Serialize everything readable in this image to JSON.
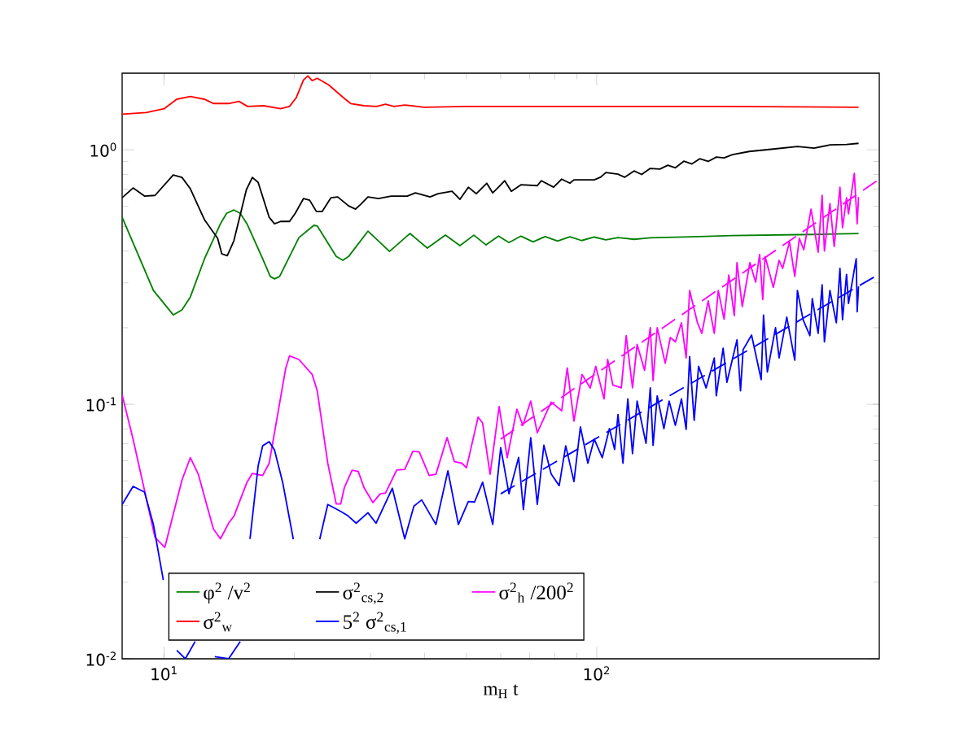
{
  "chart_data": {
    "type": "line",
    "xlabel": "m$_{H}$ t",
    "log": "xy",
    "grid": false,
    "legend": "bottom left",
    "marker": "none",
    "xlim": [
      8,
      450
    ],
    "ylim": [
      0.01,
      2
    ],
    "xticks": [
      {
        "value": 10,
        "label": "10$^{1}$"
      },
      {
        "value": 100,
        "label": "10$^{2}$"
      }
    ],
    "yticks": [
      {
        "value": 0.01,
        "label": "10$^{-2}$"
      },
      {
        "value": 0.1,
        "label": "10$^{-1}$"
      },
      {
        "value": 1,
        "label": "10$^{0}$"
      }
    ],
    "series": [
      {
        "name": "φ$^{2}$ /v$^{2}$",
        "color": "#008000",
        "line_style": "solid",
        "x": [
          8.0,
          9.45,
          10.5,
          11.0,
          11.5,
          12.4,
          13.5,
          13.95,
          14.5,
          15.0,
          15.55,
          16.9,
          17.6,
          18.0,
          18.5,
          20.5,
          22.2,
          22.6,
          25.0,
          25.9,
          26.7,
          29.6,
          33.2,
          37.0,
          40.6,
          44.7,
          48.3,
          52.0,
          55.5,
          59.3,
          62.7,
          66.8,
          71.3,
          76.0,
          81.2,
          86.7,
          92.3,
          98.7,
          105,
          112,
          122,
          133,
          166,
          206,
          318,
          403
        ],
        "values": [
          0.543,
          0.28,
          0.2245,
          0.235,
          0.264,
          0.373,
          0.512,
          0.563,
          0.58,
          0.563,
          0.512,
          0.373,
          0.318,
          0.311,
          0.318,
          0.452,
          0.505,
          0.502,
          0.381,
          0.368,
          0.381,
          0.479,
          0.399,
          0.469,
          0.411,
          0.462,
          0.42,
          0.462,
          0.423,
          0.458,
          0.432,
          0.458,
          0.435,
          0.456,
          0.438,
          0.455,
          0.44,
          0.454,
          0.443,
          0.452,
          0.445,
          0.451,
          0.455,
          0.46,
          0.465,
          0.469
        ]
      },
      {
        "name": "σ$^{2}$$_{w}$",
        "color": "#ff0000",
        "line_style": "solid",
        "x": [
          8.0,
          9.1,
          10.0,
          10.7,
          11.5,
          12.4,
          13.0,
          14.1,
          14.9,
          15.6,
          17.0,
          18.6,
          19.5,
          20.2,
          21.0,
          21.5,
          22.0,
          22.6,
          24.0,
          26.0,
          27.0,
          29.0,
          31,
          32.5,
          34,
          36,
          40,
          50,
          100,
          200,
          403
        ],
        "values": [
          1.38,
          1.4,
          1.45,
          1.58,
          1.62,
          1.58,
          1.52,
          1.52,
          1.55,
          1.48,
          1.49,
          1.45,
          1.48,
          1.6,
          1.88,
          1.95,
          1.87,
          1.91,
          1.8,
          1.6,
          1.52,
          1.49,
          1.48,
          1.51,
          1.48,
          1.5,
          1.47,
          1.48,
          1.48,
          1.48,
          1.47
        ]
      },
      {
        "name": "σ$^{2}$$_{cs,2}$",
        "color": "#000000",
        "line_style": "solid",
        "x": [
          8.0,
          8.48,
          9.01,
          9.53,
          10.5,
          11.0,
          11.5,
          12.4,
          13.3,
          13.6,
          14.0,
          14.5,
          15.5,
          16.0,
          16.5,
          17.5,
          18.0,
          18.6,
          19.5,
          20.1,
          21.0,
          21.7,
          22.5,
          23.2,
          24.3,
          25.2,
          26.7,
          27.7,
          28.5,
          29.6,
          31.3,
          33.5,
          36.5,
          38.1,
          41.2,
          43.0,
          46.3,
          48.3,
          50.5,
          52.7,
          55.7,
          57.5,
          59.3,
          61.3,
          63.5,
          66.8,
          72.9,
          74.5,
          79.5,
          83.0,
          86.7,
          88.6,
          98.7,
          102,
          105,
          112,
          116,
          122,
          127,
          133,
          140,
          146,
          152,
          159,
          166,
          173,
          181,
          189,
          197,
          206,
          225,
          256,
          291,
          318,
          346,
          378,
          403
        ],
        "values": [
          0.648,
          0.708,
          0.658,
          0.662,
          0.796,
          0.779,
          0.703,
          0.531,
          0.449,
          0.39,
          0.384,
          0.439,
          0.697,
          0.779,
          0.745,
          0.543,
          0.512,
          0.523,
          0.523,
          0.563,
          0.643,
          0.634,
          0.572,
          0.572,
          0.648,
          0.653,
          0.602,
          0.585,
          0.611,
          0.653,
          0.643,
          0.658,
          0.658,
          0.677,
          0.653,
          0.672,
          0.687,
          0.639,
          0.713,
          0.672,
          0.739,
          0.677,
          0.713,
          0.756,
          0.687,
          0.729,
          0.723,
          0.756,
          0.713,
          0.767,
          0.739,
          0.762,
          0.762,
          0.78,
          0.814,
          0.802,
          0.78,
          0.826,
          0.8,
          0.845,
          0.84,
          0.87,
          0.85,
          0.902,
          0.88,
          0.922,
          0.9,
          0.936,
          0.93,
          0.957,
          0.985,
          1.007,
          1.03,
          1.015,
          1.045,
          1.05,
          1.06
        ]
      },
      {
        "name": "5$^{2}$ σ$^{2}$$_{cs,1}$",
        "color": "#0000ff",
        "line_style": "solid",
        "x": [
          8.0,
          8.48,
          9.01,
          9.45,
          9.96,
          10.2,
          10.7,
          11.2,
          11.8,
          12.5,
          13.1,
          14.1,
          15.0,
          15.5,
          15.8,
          16.5,
          16.9,
          17.5,
          18.0,
          18.8,
          19.9,
          21.5,
          22.9,
          23.9,
          25.5,
          26.6,
          27.8,
          29.6,
          30.9,
          33.7,
          36.0,
          37.8,
          39.4,
          42.5,
          45.3,
          47.9,
          50.5,
          52.2,
          54.5,
          57.5,
          60.0,
          62.7,
          66.0,
          67.7,
          70.4,
          72.9,
          75.5,
          78.5,
          81.9,
          84.8,
          88.6,
          91.7,
          95.4,
          98.7,
          103,
          107,
          110,
          112,
          115,
          118,
          121,
          124,
          130,
          133,
          135,
          138,
          143,
          147,
          152,
          157,
          161,
          164,
          168,
          172,
          179,
          187,
          189,
          196,
          200,
          211,
          215,
          218,
          228,
          240,
          243,
          248,
          259,
          264,
          275,
          287,
          291,
          300,
          311,
          315,
          325,
          332,
          336,
          346,
          358,
          365,
          370,
          378,
          382,
          398,
          400,
          403
        ],
        "values": [
          0.0404,
          0.0476,
          0.0452,
          0.0337,
          0.0204,
          null,
          0.0108,
          0.01,
          0.0117,
          null,
          0.0102,
          0.01,
          0.0117,
          null,
          0.0296,
          0.0572,
          0.0687,
          0.0713,
          0.0662,
          0.0494,
          0.0295,
          null,
          0.0295,
          0.0404,
          0.0381,
          0.0365,
          0.0341,
          0.0375,
          0.0341,
          0.0468,
          0.0296,
          0.0398,
          0.0421,
          0.0337,
          0.0548,
          0.0337,
          0.0415,
          0.0413,
          0.0494,
          0.0337,
          0.0676,
          0.0445,
          0.0618,
          0.0386,
          0.0739,
          0.0404,
          0.069,
          0.0532,
          0.0479,
          0.0687,
          0.0497,
          0.0815,
          0.0587,
          0.073,
          0.0617,
          0.0803,
          0.0665,
          0.0911,
          0.0587,
          0.105,
          0.064,
          0.103,
          0.0702,
          0.116,
          0.069,
          0.108,
          0.0802,
          0.103,
          0.0827,
          0.105,
          0.0797,
          0.154,
          0.0865,
          0.141,
          0.116,
          0.152,
          0.108,
          0.166,
          0.122,
          0.179,
          0.113,
          0.164,
          0.187,
          0.125,
          0.224,
          0.134,
          0.2,
          0.152,
          0.22,
          0.149,
          0.28,
          0.215,
          0.186,
          0.26,
          0.19,
          0.295,
          0.176,
          0.28,
          0.209,
          0.342,
          0.215,
          0.324,
          0.249,
          0.373,
          0.231,
          0.291
        ]
      },
      {
        "name": "σ$^{2}$$_{h}$ /200$^{2}$",
        "color": "#ff00ff",
        "line_style": "solid",
        "x": [
          8.0,
          8.48,
          9.53,
          10.04,
          11.0,
          11.5,
          12.0,
          13.0,
          13.5,
          14.1,
          14.5,
          15.55,
          16.0,
          16.9,
          17.5,
          19.1,
          19.5,
          20.5,
          22.0,
          22.6,
          23.9,
          25.0,
          25.6,
          26.1,
          27.2,
          28.1,
          29.0,
          30.4,
          31.6,
          32.5,
          34.5,
          36.0,
          37.6,
          38.9,
          41.0,
          42.5,
          45.1,
          46.9,
          48.8,
          50.0,
          53.2,
          54.5,
          56.7,
          59.5,
          62.1,
          65.4,
          67.5,
          70.4,
          72.9,
          78.5,
          83.0,
          85.5,
          88.6,
          92.5,
          96.6,
          99.5,
          104,
          106,
          109,
          114,
          117,
          121,
          124,
          129,
          133,
          135,
          138,
          144,
          148,
          152,
          157,
          161,
          164,
          171,
          175,
          181,
          187,
          191,
          197,
          202,
          208,
          211,
          217,
          226,
          233,
          238,
          242,
          245,
          256,
          264,
          269,
          279,
          287,
          294,
          301,
          313,
          325,
          332,
          336,
          346,
          354,
          365,
          370,
          378,
          382,
          394,
          400,
          403
        ],
        "values": [
          0.109,
          0.0729,
          0.03,
          0.0274,
          0.0504,
          0.0617,
          0.0531,
          0.0324,
          0.0296,
          0.0341,
          0.0363,
          0.0494,
          0.0535,
          0.0525,
          0.0587,
          0.138,
          0.155,
          0.15,
          0.131,
          0.113,
          0.0587,
          0.0406,
          0.0406,
          0.047,
          0.0551,
          0.0545,
          0.047,
          0.0411,
          0.0445,
          0.0448,
          0.0552,
          0.0555,
          0.0654,
          0.065,
          0.0525,
          0.0531,
          0.074,
          0.0595,
          0.0587,
          0.0563,
          0.0891,
          0.0843,
          0.0531,
          0.098,
          0.0617,
          0.0957,
          0.0826,
          0.103,
          0.0773,
          0.102,
          0.0943,
          0.139,
          0.0859,
          0.131,
          0.116,
          0.141,
          0.105,
          0.15,
          0.119,
          0.116,
          0.186,
          0.116,
          0.172,
          0.136,
          0.2,
          0.124,
          0.2,
          0.145,
          0.183,
          0.176,
          0.209,
          0.152,
          0.28,
          0.209,
          0.19,
          0.255,
          0.19,
          0.28,
          0.216,
          0.322,
          0.223,
          0.36,
          0.242,
          0.36,
          0.302,
          0.388,
          0.258,
          0.381,
          0.288,
          0.368,
          0.342,
          0.435,
          0.318,
          0.449,
          0.405,
          0.584,
          0.396,
          0.662,
          0.4,
          0.615,
          0.417,
          0.713,
          0.494,
          0.648,
          0.56,
          0.808,
          0.512,
          0.653
        ]
      },
      {
        "color": "#ff00ff",
        "line_style": "dashed",
        "x": [
          60.0,
          450
        ],
        "values": [
          0.073,
          0.767
        ]
      },
      {
        "color": "#0000ff",
        "line_style": "dashed",
        "x": [
          60.0,
          450
        ],
        "values": [
          0.0445,
          0.325
        ]
      }
    ]
  }
}
